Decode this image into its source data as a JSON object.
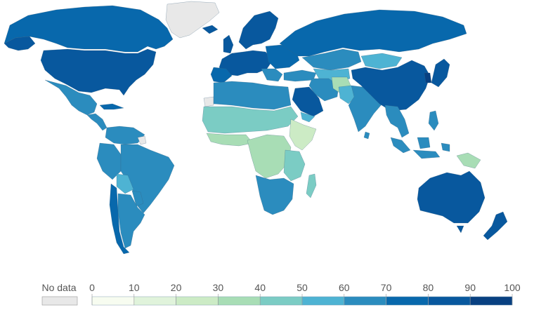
{
  "legend": {
    "no_data_label": "No data",
    "no_data_color": "#e8e8e8",
    "ticks": [
      "0",
      "10",
      "20",
      "30",
      "40",
      "50",
      "60",
      "70",
      "80",
      "90",
      "100"
    ],
    "bins": [
      {
        "range": "0-10",
        "color": "#f7fcf0"
      },
      {
        "range": "10-20",
        "color": "#e0f3db"
      },
      {
        "range": "20-30",
        "color": "#ccebc5"
      },
      {
        "range": "30-40",
        "color": "#a8ddb5"
      },
      {
        "range": "40-50",
        "color": "#7bccc4"
      },
      {
        "range": "50-60",
        "color": "#4eb3d3"
      },
      {
        "range": "60-70",
        "color": "#2b8cbe"
      },
      {
        "range": "70-80",
        "color": "#0868ac"
      },
      {
        "range": "80-90",
        "color": "#08589e"
      },
      {
        "range": "90-100",
        "color": "#084081"
      }
    ]
  },
  "chart_data": {
    "type": "choropleth",
    "scale": {
      "min": 0,
      "max": 100,
      "step": 10
    },
    "no_data_regions": [
      "Greenland",
      "Western Sahara",
      "French Guiana"
    ]
  }
}
